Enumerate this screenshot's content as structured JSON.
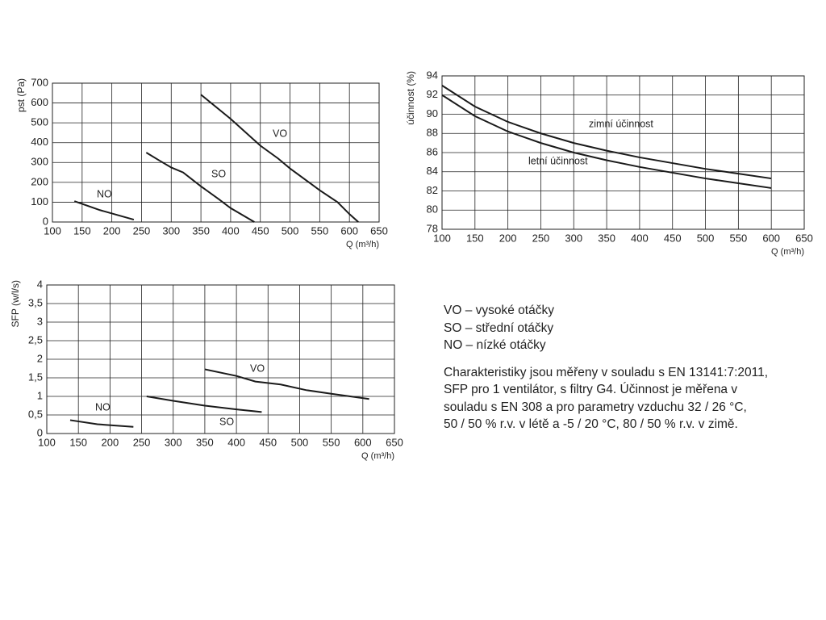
{
  "chart_data": [
    {
      "type": "line",
      "ylabel": "pst (Pa)",
      "xlabel": "Q (m³/h)",
      "xlim": [
        100,
        650
      ],
      "xticks": [
        100,
        150,
        200,
        250,
        300,
        350,
        400,
        450,
        500,
        550,
        600,
        650
      ],
      "ylim": [
        0,
        700
      ],
      "yticks": [
        0,
        100,
        200,
        300,
        400,
        500,
        600,
        700
      ],
      "grid": true,
      "series": [
        {
          "name": "NO",
          "color": "#1a1a1a",
          "x": [
            137,
            180,
            237
          ],
          "values": [
            105,
            60,
            12
          ]
        },
        {
          "name": "SO",
          "color": "#1a1a1a",
          "x": [
            258,
            280,
            300,
            320,
            350,
            380,
            400,
            440
          ],
          "values": [
            350,
            310,
            275,
            250,
            180,
            115,
            70,
            0
          ]
        },
        {
          "name": "VO",
          "color": "#1a1a1a",
          "x": [
            350,
            400,
            450,
            480,
            500,
            550,
            580,
            600,
            615
          ],
          "values": [
            642,
            520,
            385,
            320,
            270,
            160,
            100,
            40,
            0
          ]
        }
      ]
    },
    {
      "type": "line",
      "ylabel": "účinnost (%)",
      "xlabel": "Q (m³/h)",
      "xlim": [
        100,
        650
      ],
      "xticks": [
        100,
        150,
        200,
        250,
        300,
        350,
        400,
        450,
        500,
        550,
        600,
        650
      ],
      "ylim": [
        78,
        94
      ],
      "yticks": [
        78,
        80,
        82,
        84,
        86,
        88,
        90,
        92,
        94
      ],
      "grid": true,
      "series": [
        {
          "name": "zimní účinnost",
          "color": "#1a1a1a",
          "x": [
            100,
            150,
            200,
            250,
            300,
            350,
            400,
            450,
            500,
            550,
            600
          ],
          "values": [
            93,
            90.8,
            89.2,
            88,
            87,
            86.2,
            85.5,
            84.9,
            84.3,
            83.8,
            83.3
          ]
        },
        {
          "name": "letní účinnost",
          "color": "#1a1a1a",
          "x": [
            100,
            150,
            200,
            250,
            300,
            350,
            400,
            450,
            500,
            550,
            600
          ],
          "values": [
            92,
            89.8,
            88.2,
            87,
            86,
            85.2,
            84.5,
            83.9,
            83.3,
            82.8,
            82.3
          ]
        }
      ]
    },
    {
      "type": "line",
      "ylabel": "SFP (w/l/s)",
      "xlabel": "Q (m³/h)",
      "xlim": [
        100,
        650
      ],
      "xticks": [
        100,
        150,
        200,
        250,
        300,
        350,
        400,
        450,
        500,
        550,
        600,
        650
      ],
      "ylim": [
        0,
        4
      ],
      "yticks": [
        0,
        {
          "value": 0.5,
          "label": "0,5"
        },
        1,
        {
          "value": 1.5,
          "label": "1,5"
        },
        2,
        {
          "value": 2.5,
          "label": "2,5"
        },
        3,
        {
          "value": 3.5,
          "label": "3,5"
        },
        4
      ],
      "grid": true,
      "series": [
        {
          "name": "NO",
          "color": "#1a1a1a",
          "x": [
            137,
            180,
            237
          ],
          "values": [
            0.36,
            0.25,
            0.18
          ]
        },
        {
          "name": "SO",
          "color": "#1a1a1a",
          "x": [
            258,
            300,
            350,
            400,
            440
          ],
          "values": [
            1.0,
            0.88,
            0.75,
            0.65,
            0.58
          ]
        },
        {
          "name": "VO",
          "color": "#1a1a1a",
          "x": [
            350,
            400,
            430,
            470,
            510,
            550,
            610
          ],
          "values": [
            1.73,
            1.55,
            1.4,
            1.32,
            1.17,
            1.07,
            0.93
          ]
        }
      ]
    }
  ],
  "notes": {
    "legend": [
      "VO – vysoké otáčky",
      "SO – střední otáčky",
      "NO – nízké otáčky"
    ],
    "description": [
      "Charakteristiky jsou měřeny v souladu s EN 13141:7:2011,",
      "SFP pro 1 ventilátor, s filtry G4. Účinnost je měřena v",
      "souladu s EN 308 a pro parametry vzduchu 32 / 26 °C,",
      "50 / 50 % r.v. v létě a -5 / 20 °C, 80 / 50 % r.v. v zimě."
    ]
  }
}
